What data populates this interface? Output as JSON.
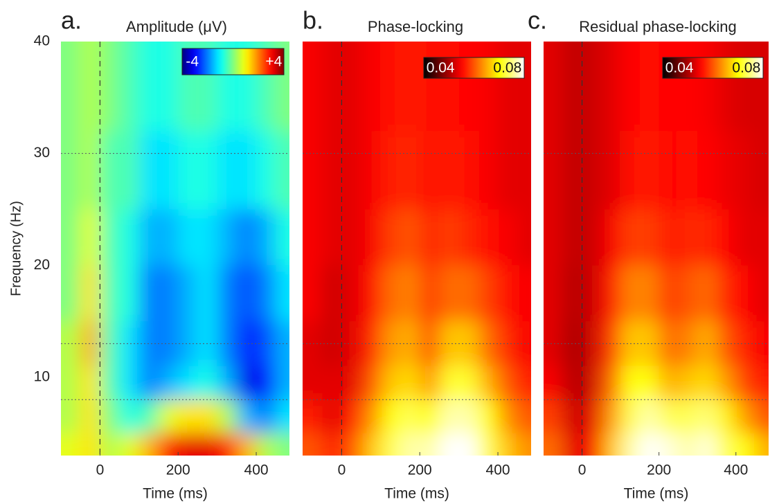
{
  "chart_data": [
    {
      "type": "heatmap",
      "label": "a.",
      "title": "Amplitude (μV)",
      "xlabel": "Time (ms)",
      "ylabel": "Frequency (Hz)",
      "xlim": [
        -100,
        485
      ],
      "ylim": [
        3,
        40
      ],
      "xticks": [
        0,
        200,
        400
      ],
      "yticks": [
        10,
        20,
        30,
        40
      ],
      "hlines": [
        8,
        13,
        30
      ],
      "vlines": [
        0
      ],
      "colormap": "jet",
      "clim": [
        -5,
        5
      ],
      "colorbar_ticks": [
        -4,
        {
          "value": 4,
          "label": "+4"
        }
      ],
      "x_bins": [
        -100,
        -50,
        0,
        50,
        100,
        150,
        200,
        250,
        300,
        350,
        400,
        450,
        485
      ],
      "y_bins": [
        3,
        5,
        8,
        11,
        15,
        20,
        25,
        32,
        40
      ],
      "z": [
        [
          1,
          1.5,
          0.5,
          1,
          2,
          3.5,
          4,
          4,
          3.5,
          2,
          0.5,
          0
        ],
        [
          0.5,
          1.5,
          0,
          -1,
          -0.5,
          1,
          1.5,
          1.5,
          0.5,
          -2,
          -2.5,
          -1.5
        ],
        [
          0.5,
          1.5,
          -0.5,
          -1.5,
          -2.5,
          -2,
          -1.5,
          -1,
          -2,
          -4,
          -3.5,
          -2
        ],
        [
          0.5,
          2,
          -0.5,
          -1.5,
          -2.5,
          -2.5,
          -2,
          -1.5,
          -2.5,
          -3.5,
          -3,
          -2
        ],
        [
          0,
          1.5,
          -0.5,
          -1,
          -2.5,
          -2.5,
          -2,
          -1.5,
          -2.5,
          -3,
          -2.5,
          -1.5
        ],
        [
          0,
          1,
          -0.5,
          -1,
          -2,
          -2,
          -1.5,
          -1.5,
          -2,
          -2.5,
          -2,
          -1
        ],
        [
          0,
          0.5,
          -0.5,
          -0.5,
          -1.5,
          -1.5,
          -1,
          -1,
          -1.5,
          -1.5,
          -1,
          -0.5
        ],
        [
          0,
          0.5,
          0,
          -0.5,
          -1,
          -1,
          -0.5,
          -0.5,
          -1,
          -1,
          -0.5,
          0
        ]
      ]
    },
    {
      "type": "heatmap",
      "label": "b.",
      "title": "Phase-locking",
      "xlabel": "Time (ms)",
      "xlim": [
        -100,
        485
      ],
      "ylim": [
        3,
        40
      ],
      "xticks": [
        0,
        200,
        400
      ],
      "hlines": [
        8,
        13,
        30
      ],
      "vlines": [
        0
      ],
      "colormap": "hot",
      "clim": [
        0.03,
        0.09
      ],
      "colorbar_ticks": [
        0.04,
        0.08
      ],
      "x_bins": [
        -100,
        -50,
        0,
        50,
        100,
        150,
        200,
        250,
        300,
        350,
        400,
        450,
        485
      ],
      "y_bins": [
        3,
        5,
        8,
        11,
        15,
        20,
        25,
        32,
        40
      ],
      "z": [
        [
          0.06,
          0.055,
          0.06,
          0.07,
          0.08,
          0.085,
          0.085,
          0.09,
          0.09,
          0.08,
          0.07,
          0.065
        ],
        [
          0.055,
          0.05,
          0.055,
          0.065,
          0.075,
          0.08,
          0.075,
          0.085,
          0.085,
          0.075,
          0.065,
          0.06
        ],
        [
          0.05,
          0.05,
          0.05,
          0.06,
          0.07,
          0.072,
          0.066,
          0.078,
          0.078,
          0.068,
          0.06,
          0.055
        ],
        [
          0.05,
          0.048,
          0.05,
          0.056,
          0.066,
          0.068,
          0.06,
          0.07,
          0.07,
          0.062,
          0.056,
          0.052
        ],
        [
          0.052,
          0.048,
          0.05,
          0.054,
          0.062,
          0.064,
          0.058,
          0.062,
          0.062,
          0.058,
          0.054,
          0.052
        ],
        [
          0.052,
          0.05,
          0.05,
          0.052,
          0.058,
          0.06,
          0.056,
          0.058,
          0.056,
          0.054,
          0.052,
          0.05
        ],
        [
          0.052,
          0.05,
          0.05,
          0.052,
          0.055,
          0.056,
          0.054,
          0.055,
          0.054,
          0.052,
          0.05,
          0.05
        ],
        [
          0.052,
          0.05,
          0.05,
          0.052,
          0.054,
          0.055,
          0.054,
          0.054,
          0.053,
          0.052,
          0.05,
          0.05
        ]
      ]
    },
    {
      "type": "heatmap",
      "label": "c.",
      "title": "Residual phase-locking",
      "xlabel": "Time (ms)",
      "xlim": [
        -100,
        485
      ],
      "ylim": [
        3,
        40
      ],
      "xticks": [
        0,
        200,
        400
      ],
      "hlines": [
        8,
        13,
        30
      ],
      "vlines": [
        0
      ],
      "colormap": "hot",
      "clim": [
        0.03,
        0.09
      ],
      "colorbar_ticks": [
        0.04,
        0.08
      ],
      "x_bins": [
        -100,
        -50,
        0,
        50,
        100,
        150,
        200,
        250,
        300,
        350,
        400,
        450,
        485
      ],
      "y_bins": [
        3,
        5,
        8,
        11,
        15,
        20,
        25,
        32,
        40
      ],
      "z": [
        [
          0.062,
          0.05,
          0.052,
          0.07,
          0.085,
          0.09,
          0.088,
          0.085,
          0.088,
          0.08,
          0.075,
          0.068
        ],
        [
          0.058,
          0.048,
          0.05,
          0.066,
          0.08,
          0.085,
          0.08,
          0.08,
          0.082,
          0.074,
          0.066,
          0.06
        ],
        [
          0.052,
          0.046,
          0.048,
          0.062,
          0.076,
          0.076,
          0.068,
          0.07,
          0.072,
          0.066,
          0.058,
          0.055
        ],
        [
          0.05,
          0.045,
          0.048,
          0.058,
          0.07,
          0.07,
          0.062,
          0.064,
          0.068,
          0.06,
          0.055,
          0.052
        ],
        [
          0.05,
          0.046,
          0.048,
          0.055,
          0.064,
          0.064,
          0.058,
          0.06,
          0.062,
          0.056,
          0.053,
          0.05
        ],
        [
          0.05,
          0.047,
          0.048,
          0.052,
          0.058,
          0.058,
          0.055,
          0.056,
          0.056,
          0.053,
          0.05,
          0.05
        ],
        [
          0.05,
          0.047,
          0.048,
          0.05,
          0.054,
          0.055,
          0.053,
          0.054,
          0.053,
          0.051,
          0.05,
          0.049
        ],
        [
          0.05,
          0.047,
          0.048,
          0.05,
          0.053,
          0.054,
          0.053,
          0.053,
          0.052,
          0.05,
          0.049,
          0.049
        ]
      ]
    }
  ]
}
